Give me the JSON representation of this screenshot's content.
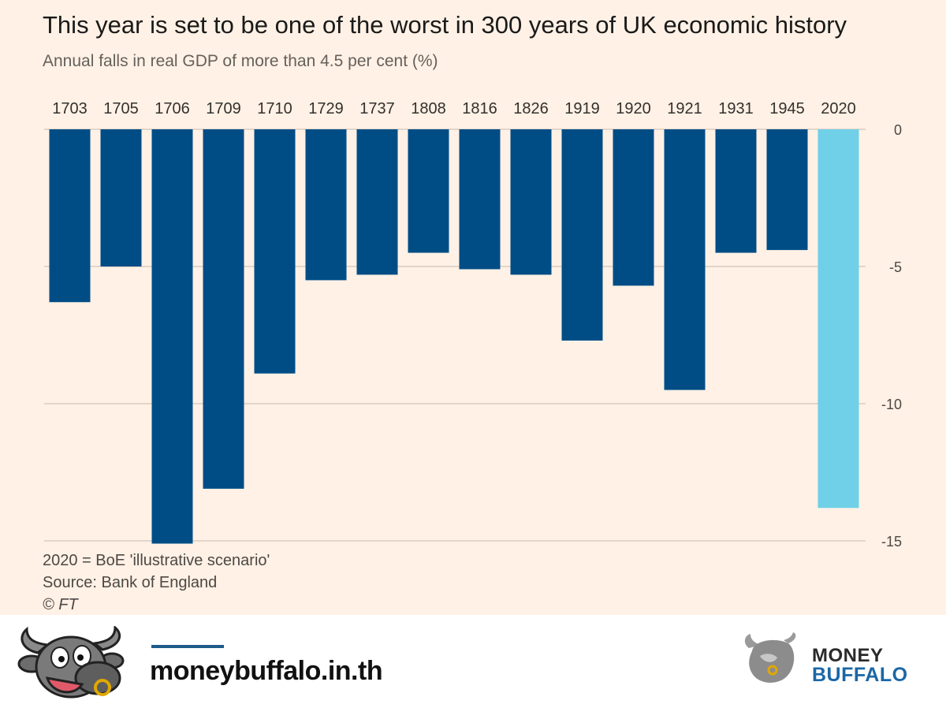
{
  "chart_data": {
    "type": "bar",
    "title": "This year is set to be one of the worst in 300 years of UK economic history",
    "subtitle": "Annual falls in real GDP of more than 4.5 per cent (%)",
    "categories": [
      "1703",
      "1705",
      "1706",
      "1709",
      "1710",
      "1729",
      "1737",
      "1808",
      "1816",
      "1826",
      "1919",
      "1920",
      "1921",
      "1931",
      "1945",
      "2020"
    ],
    "values": [
      -6.3,
      -5.0,
      -15.1,
      -13.1,
      -8.9,
      -5.5,
      -5.3,
      -4.5,
      -5.1,
      -5.3,
      -7.7,
      -5.7,
      -9.5,
      -4.5,
      -4.4,
      -13.8
    ],
    "highlight_category": "2020",
    "colors": {
      "bar": "#004d86",
      "highlight": "#6fd0e8",
      "grid": "#d9ccc1"
    },
    "ylim": [
      -15,
      0
    ],
    "yticks": [
      0,
      -5,
      -10,
      -15
    ],
    "ytick_labels": [
      "0",
      "-5",
      "-10",
      "-15"
    ],
    "grid": true,
    "notes": {
      "scenario": "2020 = BoE 'illustrative scenario'",
      "source": "Source: Bank of England",
      "copyright": "© FT"
    }
  },
  "footer": {
    "url": "moneybuffalo.in.th",
    "brand_line_1": "MONEY",
    "brand_line_2": "BUFFALO",
    "mascot_icon": "buffalo-mascot-icon",
    "logo_icon": "buffalo-logo-icon"
  }
}
